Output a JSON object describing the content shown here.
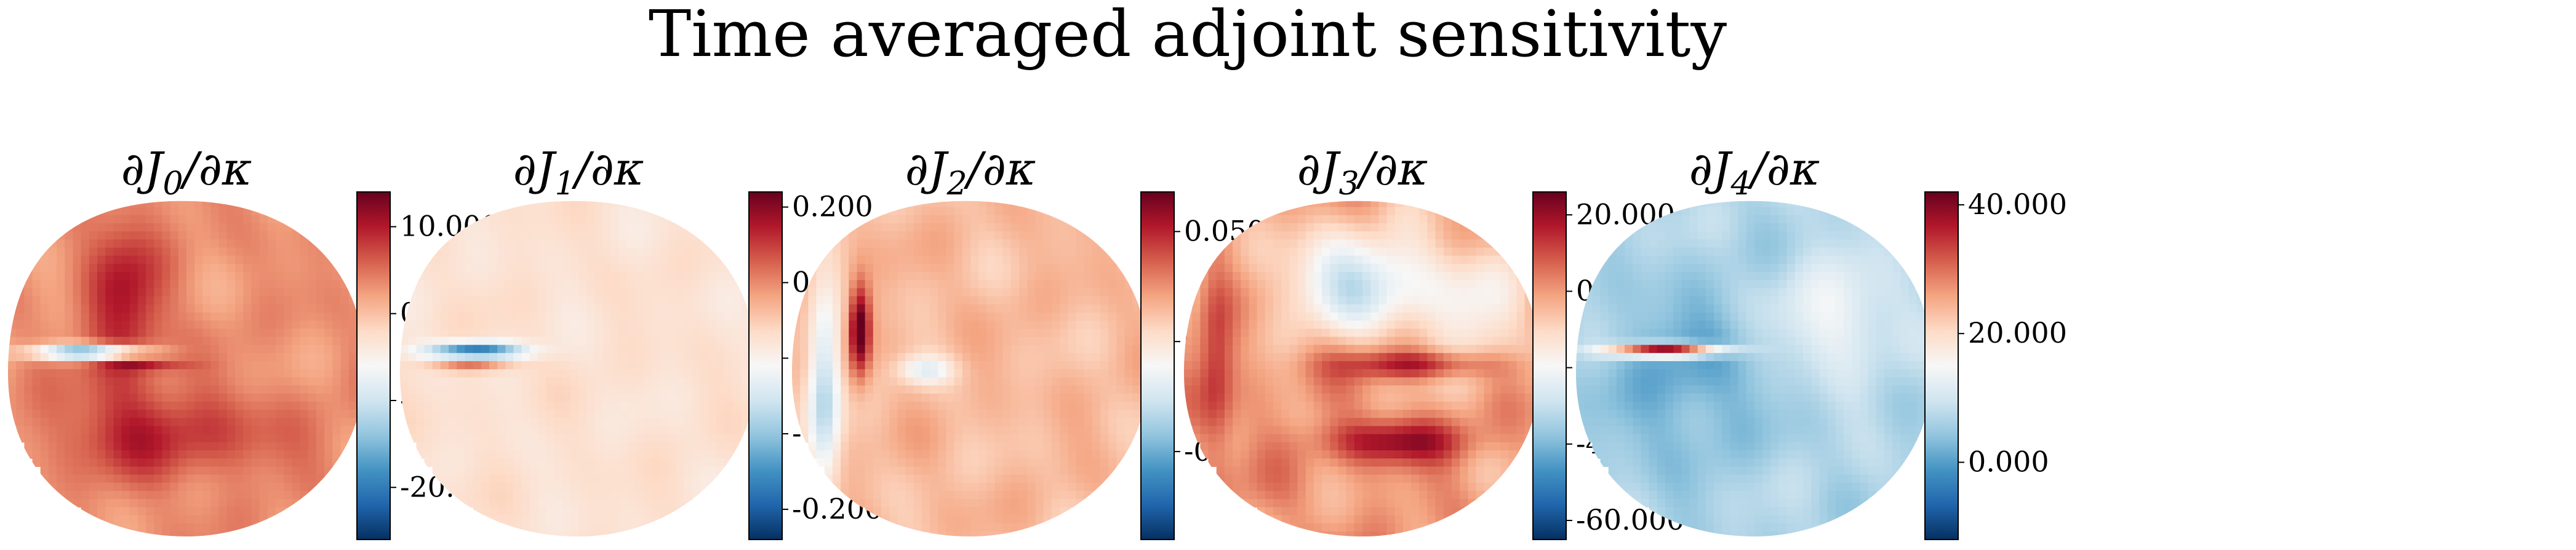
{
  "suptitle": "Time averaged adjoint sensitivity",
  "colormap": [
    "#053061",
    "#2166ac",
    "#4393c3",
    "#92c5de",
    "#d1e5f0",
    "#f7f7f7",
    "#fddbc7",
    "#f4a582",
    "#d6604d",
    "#b2182b",
    "#67001f"
  ],
  "chart_data": [
    {
      "type": "heatmap",
      "title": "∂J",
      "title_subscript": "0",
      "title_tail": "/∂κ",
      "colorbar": {
        "range": [
          -26,
          14
        ],
        "ticks": [
          10,
          0,
          -10,
          -20
        ],
        "tick_labels": [
          "10.000",
          "0.000",
          "-10.000",
          "-20.000"
        ]
      },
      "field": {
        "background": 3,
        "noise": 2.2,
        "features": [
          {
            "kind": "band",
            "cx": -0.35,
            "cy": -0.3,
            "rx": 0.22,
            "ry": 0.55,
            "value": 7
          },
          {
            "kind": "blob",
            "cx": -0.1,
            "cy": 0.42,
            "rx": 0.65,
            "ry": 0.25,
            "value": 5.5
          },
          {
            "kind": "streak",
            "cx": -0.55,
            "cy": -0.05,
            "rx": 0.3,
            "ry": 0.045,
            "value": -22
          },
          {
            "kind": "streak",
            "cx": -0.25,
            "cy": 0.02,
            "rx": 0.25,
            "ry": 0.035,
            "value": 5
          }
        ]
      }
    },
    {
      "type": "heatmap",
      "title": "∂J",
      "title_subscript": "1",
      "title_tail": "/∂κ",
      "colorbar": {
        "range": [
          -0.24,
          0.22
        ],
        "ticks": [
          0.2,
          0.1,
          0.0,
          -0.1,
          -0.2
        ],
        "tick_labels": [
          "0.200",
          "0.100",
          "0.000",
          "-0.100",
          "-0.200"
        ]
      },
      "field": {
        "background": 0.025,
        "noise": 0.018,
        "features": [
          {
            "kind": "streak",
            "cx": -0.58,
            "cy": -0.06,
            "rx": 0.26,
            "ry": 0.045,
            "value": -0.2
          },
          {
            "kind": "streak",
            "cx": -0.6,
            "cy": 0.03,
            "rx": 0.22,
            "ry": 0.03,
            "value": 0.1
          }
        ]
      }
    },
    {
      "type": "heatmap",
      "title": "∂J",
      "title_subscript": "2",
      "title_tail": "/∂κ",
      "colorbar": {
        "range": [
          -0.09,
          0.068
        ],
        "ticks": [
          0.05,
          0.0,
          -0.05
        ],
        "tick_labels": [
          "0.050",
          "0.000",
          "-0.050"
        ]
      },
      "field": {
        "background": 0.014,
        "noise": 0.009,
        "features": [
          {
            "kind": "band",
            "cx": -0.82,
            "cy": 0.15,
            "rx": 0.09,
            "ry": 0.5,
            "value": -0.05
          },
          {
            "kind": "streak",
            "cx": -0.62,
            "cy": -0.18,
            "rx": 0.06,
            "ry": 0.25,
            "value": 0.06
          },
          {
            "kind": "blob",
            "cx": -0.25,
            "cy": 0.05,
            "rx": 0.15,
            "ry": 0.08,
            "value": -0.03
          }
        ]
      }
    },
    {
      "type": "heatmap",
      "title": "∂J",
      "title_subscript": "3",
      "title_tail": "/∂κ",
      "colorbar": {
        "range": [
          -65,
          26
        ],
        "ticks": [
          20,
          0,
          -20,
          -40,
          -60
        ],
        "tick_labels": [
          "20.000",
          "0.000",
          "-20.000",
          "-40.000",
          "-60.000"
        ]
      },
      "field": {
        "background": 0,
        "noise": 8,
        "features": [
          {
            "kind": "blob",
            "cx": 0.0,
            "cy": -0.45,
            "rx": 0.5,
            "ry": 0.3,
            "value": -28
          },
          {
            "kind": "streak",
            "cx": 0.32,
            "cy": 0.02,
            "rx": 0.42,
            "ry": 0.08,
            "value": 22
          },
          {
            "kind": "blob",
            "cx": 0.18,
            "cy": 0.45,
            "rx": 0.4,
            "ry": 0.12,
            "value": 20
          },
          {
            "kind": "band",
            "cx": -0.82,
            "cy": 0.0,
            "rx": 0.1,
            "ry": 0.55,
            "value": 14
          },
          {
            "kind": "blob",
            "cx": 0.65,
            "cy": -0.2,
            "rx": 0.25,
            "ry": 0.35,
            "value": -15
          }
        ]
      }
    },
    {
      "type": "heatmap",
      "title": "∂J",
      "title_subscript": "4",
      "title_tail": "/∂κ",
      "colorbar": {
        "range": [
          -12,
          42
        ],
        "ticks": [
          40,
          20,
          0
        ],
        "tick_labels": [
          "40.000",
          "20.000",
          "0.000"
        ]
      },
      "field": {
        "background": 7,
        "noise": 3,
        "features": [
          {
            "kind": "blob",
            "cx": -0.4,
            "cy": 0.1,
            "rx": 0.45,
            "ry": 0.5,
            "value": -6
          },
          {
            "kind": "streak",
            "cx": -0.5,
            "cy": -0.06,
            "rx": 0.3,
            "ry": 0.035,
            "value": 38
          },
          {
            "kind": "blob",
            "cx": 0.45,
            "cy": -0.25,
            "rx": 0.3,
            "ry": 0.3,
            "value": 8
          }
        ]
      }
    }
  ]
}
